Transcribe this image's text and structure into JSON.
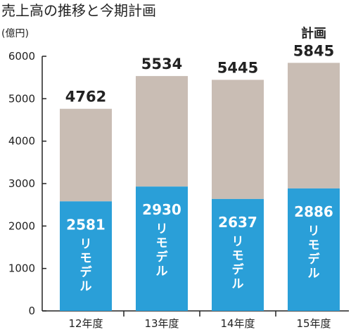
{
  "chart_data": {
    "type": "bar",
    "stacked": true,
    "title": "売上高の推移と今期計画",
    "unit_label": "(億円)",
    "categories": [
      "12年度",
      "13年度",
      "14年度",
      "15年度"
    ],
    "totals": [
      4762,
      5534,
      5445,
      5845
    ],
    "plan_label": "計画",
    "plan_category_index": 3,
    "series": [
      {
        "name": "リモデル",
        "values": [
          2581,
          2930,
          2637,
          2886
        ],
        "color": "#2a9fd8",
        "label_color": "#ffffff"
      },
      {
        "values": [
          2181,
          2604,
          2808,
          2959
        ],
        "color": "#c9bdb4"
      }
    ],
    "ylim": [
      0,
      6000
    ],
    "yticks": [
      0,
      1000,
      2000,
      3000,
      4000,
      5000,
      6000
    ],
    "grid": false,
    "legend": "none"
  }
}
